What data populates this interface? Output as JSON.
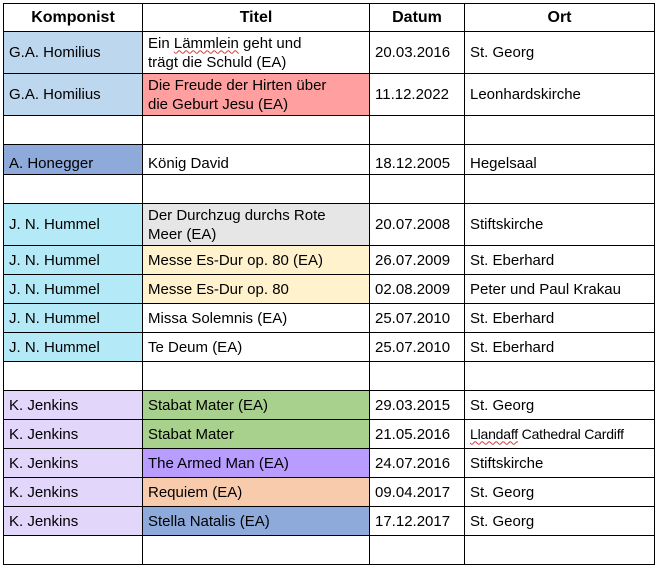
{
  "headers": [
    "Komponist",
    "Titel",
    "Datum",
    "Ort"
  ],
  "colors": {
    "homilius": "#bdd7ee",
    "honegger": "#8eaadb",
    "hummel": "#b4eaf7",
    "jenkins": "#e2d6fb",
    "title_red": "#ff9f9f",
    "title_grey": "#e6e6e6",
    "title_yellow": "#fff2cc",
    "title_green": "#a9d18e",
    "title_purple": "#b99cff",
    "title_orange": "#f8cbad",
    "title_blue": "#8eaadb"
  },
  "rows": [
    {
      "komponist": "G.A. Homilius",
      "titel_a": "Ein ",
      "titel_b": "Lämmlein",
      "titel_c": " geht und\nträgt die Schuld (EA)",
      "datum": "20.03.2016",
      "ort": "St. Georg"
    },
    {
      "komponist": "G.A. Homilius",
      "titel": "Die Freude der Hirten über\ndie Geburt Jesu (EA)",
      "datum": "11.12.2022",
      "ort": "Leonhardskirche"
    },
    {
      "komponist": "A. Honegger",
      "titel": "König David",
      "datum": "18.12.2005",
      "ort": "Hegelsaal"
    },
    {
      "komponist": "J. N. Hummel",
      "titel": "Der Durchzug durchs Rote\nMeer (EA)",
      "datum": "20.07.2008",
      "ort": "Stiftskirche"
    },
    {
      "komponist": "J. N. Hummel",
      "titel": "Messe Es-Dur op. 80 (EA)",
      "datum": "26.07.2009",
      "ort": "St. Eberhard"
    },
    {
      "komponist": "J. N. Hummel",
      "titel": "Messe Es-Dur op. 80",
      "datum": "02.08.2009",
      "ort": "Peter und Paul Krakau"
    },
    {
      "komponist": "J. N. Hummel",
      "titel": "Missa Solemnis (EA)",
      "datum": "25.07.2010",
      "ort": "St. Eberhard"
    },
    {
      "komponist": "J. N. Hummel",
      "titel": "Te Deum (EA)",
      "datum": "25.07.2010",
      "ort": "St. Eberhard"
    },
    {
      "komponist": "K. Jenkins",
      "titel": "Stabat Mater (EA)",
      "datum": "29.03.2015",
      "ort": "St. Georg"
    },
    {
      "komponist": "K. Jenkins",
      "titel": "Stabat Mater",
      "datum": "21.05.2016",
      "ort_a": "Llandaff",
      "ort_b": " Cathedral Cardiff"
    },
    {
      "komponist": "K. Jenkins",
      "titel": "The Armed Man (EA)",
      "datum": "24.07.2016",
      "ort": "Stiftskirche"
    },
    {
      "komponist": "K. Jenkins",
      "titel": "Requiem (EA)",
      "datum": "09.04.2017",
      "ort": "St. Georg"
    },
    {
      "komponist": "K. Jenkins",
      "titel": "Stella Natalis (EA)",
      "datum": "17.12.2017",
      "ort": "St. Georg"
    }
  ]
}
